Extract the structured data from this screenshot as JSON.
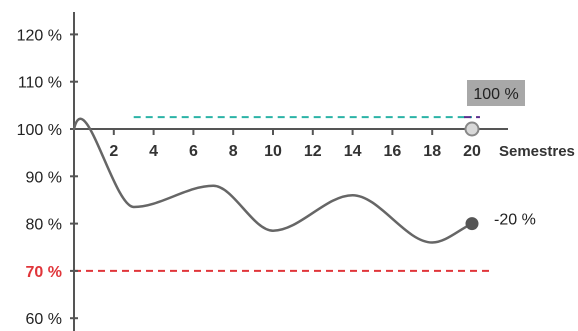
{
  "chart_data": {
    "type": "line",
    "xlabel": "Semestres",
    "ylabel": "",
    "title": "",
    "xlim": [
      0,
      20
    ],
    "ylim": [
      60,
      120
    ],
    "x_ticks": [
      2,
      4,
      6,
      8,
      10,
      12,
      14,
      16,
      18,
      20
    ],
    "y_ticks": [
      {
        "value": 60,
        "label": "60 %"
      },
      {
        "value": 70,
        "label": "70 %",
        "highlight": true
      },
      {
        "value": 80,
        "label": "80 %"
      },
      {
        "value": 90,
        "label": "90 %"
      },
      {
        "value": 100,
        "label": "100 %"
      },
      {
        "value": 110,
        "label": "110 %"
      },
      {
        "value": 120,
        "label": "120 %"
      }
    ],
    "series": [
      {
        "color": "#666666",
        "x": [
          0,
          3,
          7,
          10,
          14,
          18,
          20
        ],
        "y": [
          100,
          83.5,
          88,
          78.5,
          86,
          76,
          80
        ]
      }
    ],
    "reference_lines": [
      {
        "y": 102.5,
        "x_start": 3,
        "x_end": 20,
        "color": "#2bb3a6",
        "style": "dashed"
      },
      {
        "y": 102.5,
        "x_start": 19.6,
        "x_end": 20.4,
        "color": "#5a2d8c",
        "style": "dashed"
      },
      {
        "y": 70,
        "x_start": 0,
        "x_end": 21,
        "color": "#e0353a",
        "style": "dashed"
      }
    ],
    "annotations": [
      {
        "text": "100 %",
        "x": 20,
        "y": 100,
        "style": "box",
        "marker": "hollow",
        "bg": "#a8a8a8"
      },
      {
        "text": "-20 %",
        "x": 20,
        "y": 80,
        "style": "plain",
        "marker": "filled"
      }
    ],
    "grid": false,
    "legend": "none",
    "axis_color": "#555555",
    "highlight_color": "#e0353a"
  }
}
